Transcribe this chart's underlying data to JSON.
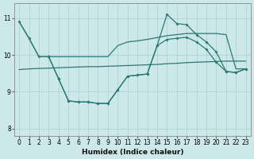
{
  "xlabel": "Humidex (Indice chaleur)",
  "bg_color": "#cce8e8",
  "line_color": "#2a7a72",
  "grid_color": "#aacece",
  "xlim": [
    -0.5,
    23.5
  ],
  "ylim": [
    7.8,
    11.4
  ],
  "yticks": [
    8,
    9,
    10,
    11
  ],
  "xticks": [
    0,
    1,
    2,
    3,
    4,
    5,
    6,
    7,
    8,
    9,
    10,
    11,
    12,
    13,
    14,
    15,
    16,
    17,
    18,
    19,
    20,
    21,
    22,
    23
  ],
  "line_high_x": [
    0,
    1,
    2,
    3,
    4,
    5,
    6,
    7,
    8,
    9,
    10,
    11,
    12,
    13,
    14,
    15,
    16,
    17,
    18,
    19,
    20,
    21,
    22,
    23
  ],
  "line_high_y": [
    10.9,
    10.45,
    9.95,
    9.95,
    9.95,
    9.95,
    9.95,
    9.95,
    9.95,
    9.95,
    10.25,
    10.35,
    10.38,
    10.42,
    10.47,
    10.52,
    10.55,
    10.58,
    10.58,
    10.58,
    10.58,
    10.55,
    9.62,
    9.62
  ],
  "line_low_x": [
    0,
    1,
    2,
    3,
    4,
    5,
    6,
    7,
    8,
    9,
    10,
    11,
    12,
    13,
    14,
    15,
    16,
    17,
    18,
    19,
    20,
    21,
    22,
    23
  ],
  "line_low_y": [
    9.6,
    9.62,
    9.63,
    9.64,
    9.65,
    9.66,
    9.67,
    9.68,
    9.68,
    9.69,
    9.7,
    9.71,
    9.72,
    9.73,
    9.74,
    9.76,
    9.77,
    9.79,
    9.8,
    9.81,
    9.82,
    9.83,
    9.83,
    9.83
  ],
  "line_zigzag1_x": [
    0,
    1,
    2,
    3,
    4,
    5,
    6,
    7,
    8,
    9,
    10,
    11,
    12,
    13,
    14,
    15,
    16,
    17,
    18,
    19,
    20,
    21,
    22,
    23
  ],
  "line_zigzag1_y": [
    10.9,
    10.45,
    9.95,
    9.95,
    9.35,
    8.75,
    8.72,
    8.72,
    8.68,
    8.68,
    9.05,
    9.42,
    9.45,
    9.48,
    10.25,
    11.1,
    10.85,
    10.82,
    10.55,
    10.35,
    10.08,
    9.55,
    9.52,
    9.62
  ],
  "line_zigzag2_x": [
    3,
    4,
    5,
    6,
    7,
    8,
    9,
    10,
    11,
    12,
    13,
    14,
    15,
    16,
    17,
    18,
    19,
    20,
    21,
    22,
    23
  ],
  "line_zigzag2_y": [
    9.95,
    9.35,
    8.75,
    8.72,
    8.72,
    8.68,
    8.68,
    9.05,
    9.42,
    9.45,
    9.48,
    10.25,
    10.42,
    10.45,
    10.48,
    10.35,
    10.15,
    9.8,
    9.55,
    9.52,
    9.62
  ]
}
